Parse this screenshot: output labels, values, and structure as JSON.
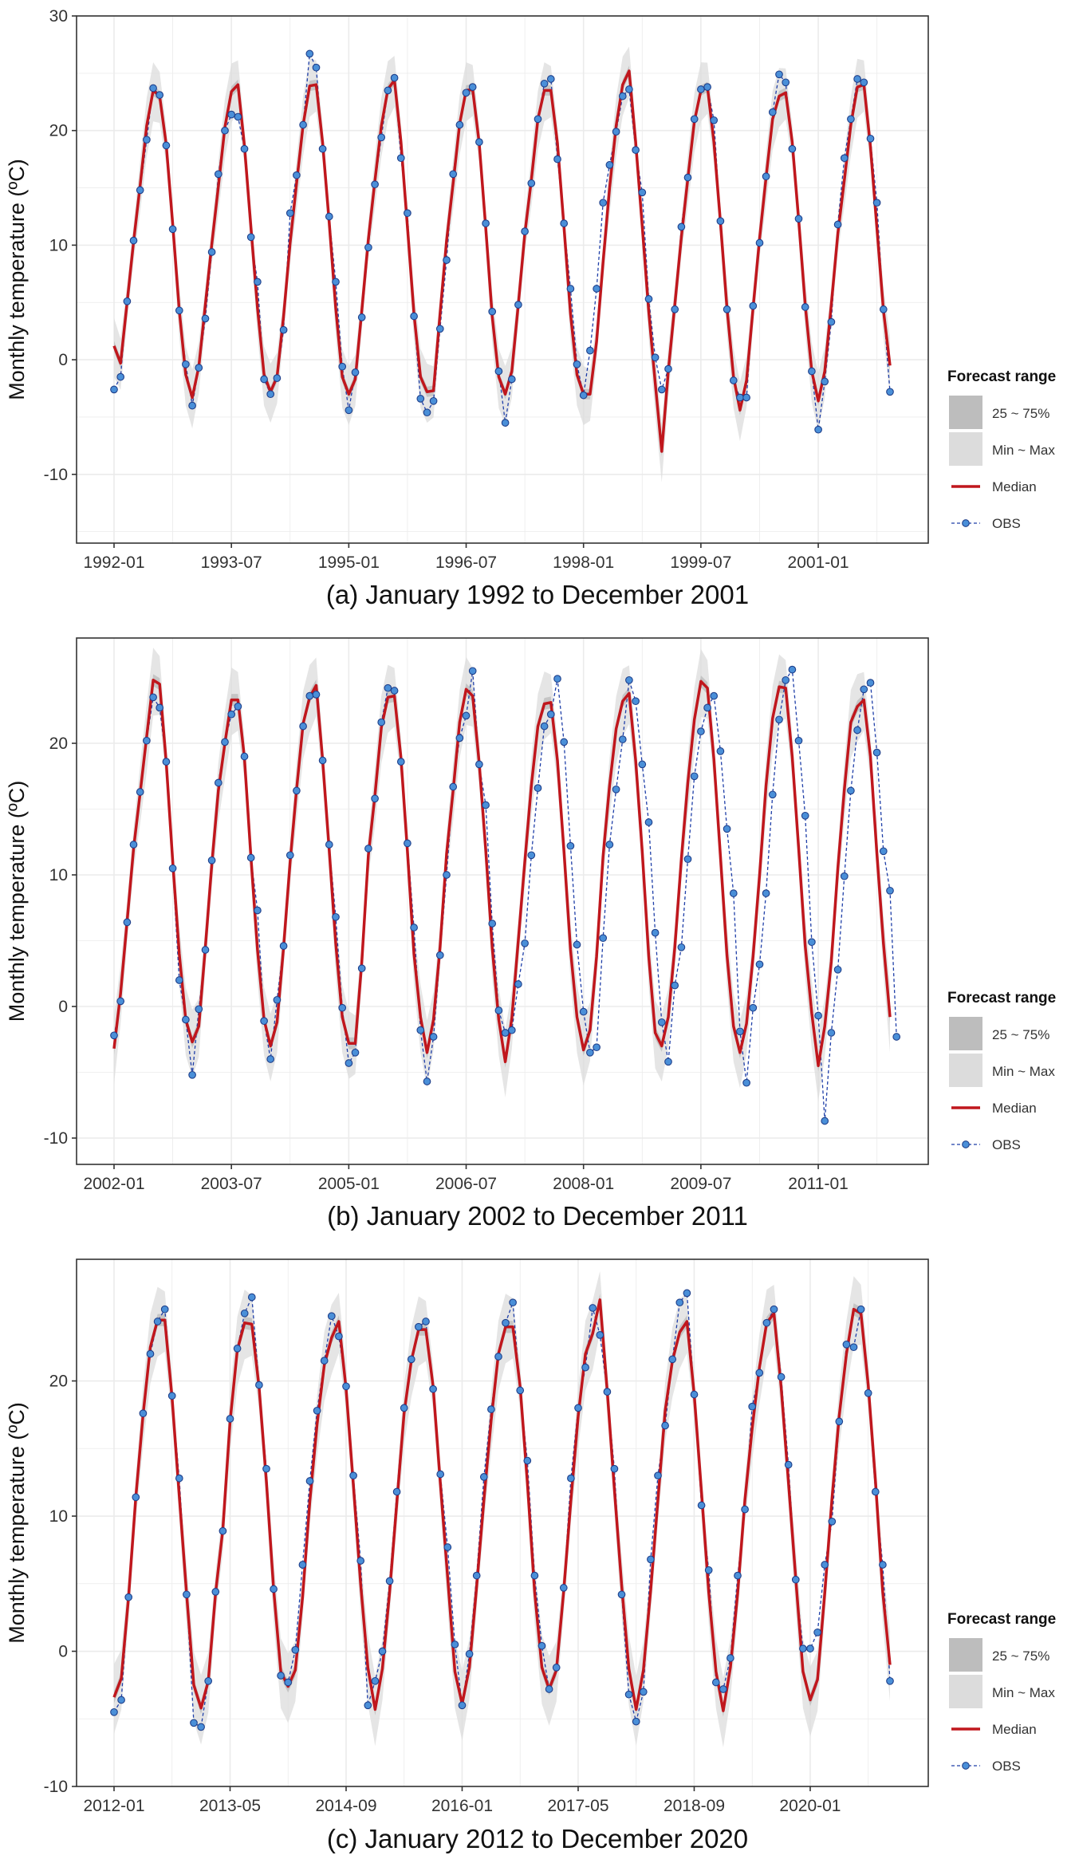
{
  "colors": {
    "panel_border": "#333333",
    "grid": "#ebebeb",
    "band_minmax": "#dcdcdc",
    "band_iqr": "#bdbdbd",
    "median": "#c0171d",
    "obs_line": "#1f3fa8",
    "obs_point": "#4a8fd8",
    "obs_point_edge": "#1f3f8a",
    "text": "#333333"
  },
  "legend": {
    "title": "Forecast range",
    "iqr_label": "25 ~ 75%",
    "minmax_label": "Min ~ Max",
    "median_label": "Median",
    "obs_label": "OBS"
  },
  "chart_data": [
    {
      "type": "line",
      "caption": "(a) January 1992 to December 2001",
      "ylabel": "Monthly temperature (ºC)",
      "ylim": [
        -16,
        30
      ],
      "yticks": [
        -10,
        0,
        10,
        20,
        30
      ],
      "x_start": "1992-01",
      "xticks": [
        {
          "label": "1992-01",
          "index": 0
        },
        {
          "label": "1993-07",
          "index": 18
        },
        {
          "label": "1995-01",
          "index": 36
        },
        {
          "label": "1996-07",
          "index": 54
        },
        {
          "label": "1998-01",
          "index": 72
        },
        {
          "label": "1999-07",
          "index": 90
        },
        {
          "label": "2001-01",
          "index": 108
        }
      ],
      "series": [
        {
          "name": "Median",
          "values": [
            1.2,
            -0.3,
            5.0,
            10.3,
            15.2,
            20.4,
            23.5,
            23.0,
            18.8,
            11.8,
            4.3,
            -1.3,
            -3.3,
            -0.6,
            4.8,
            10.1,
            15.1,
            20.3,
            23.4,
            24.0,
            18.7,
            11.5,
            4.5,
            -1.3,
            -2.8,
            -1.5,
            3.8,
            10.2,
            15.4,
            20.5,
            23.9,
            24.0,
            18.9,
            12.0,
            4.5,
            -1.5,
            -3.0,
            -1.7,
            4.3,
            10.5,
            15.6,
            20.4,
            23.6,
            24.4,
            19.0,
            11.6,
            4.0,
            -1.5,
            -2.8,
            -2.7,
            4.0,
            10.4,
            15.4,
            20.6,
            23.5,
            23.6,
            18.9,
            11.5,
            3.8,
            -1.5,
            -3.0,
            -1.0,
            4.8,
            11.0,
            15.7,
            21.0,
            23.5,
            23.5,
            18.9,
            11.6,
            4.0,
            -1.3,
            -3.0,
            -3.0,
            1.6,
            8.5,
            15.0,
            20.4,
            24.0,
            25.2,
            19.0,
            11.7,
            4.2,
            -2.0,
            -8.0,
            -1.0,
            4.8,
            10.7,
            15.8,
            20.8,
            23.5,
            23.8,
            19.0,
            12.0,
            4.5,
            -1.5,
            -4.4,
            -1.8,
            4.5,
            10.6,
            15.9,
            21.0,
            23.0,
            23.3,
            19.0,
            12.2,
            4.8,
            -1.0,
            -3.6,
            -1.0,
            4.8,
            11.0,
            15.7,
            20.5,
            23.8,
            24.0,
            18.6,
            11.5,
            4.3,
            -0.5
          ]
        },
        {
          "name": "OBS",
          "values": [
            -2.6,
            -1.5,
            5.1,
            10.4,
            14.8,
            19.2,
            23.7,
            23.1,
            18.7,
            11.4,
            4.3,
            -0.4,
            -4.0,
            -0.7,
            3.6,
            9.4,
            16.2,
            20.0,
            21.4,
            21.2,
            18.4,
            10.7,
            6.8,
            -1.7,
            -3.0,
            -1.6,
            2.6,
            12.8,
            16.1,
            20.5,
            26.7,
            25.5,
            18.4,
            12.5,
            6.8,
            -0.6,
            -4.4,
            -1.1,
            3.7,
            9.8,
            15.3,
            19.4,
            23.5,
            24.6,
            17.6,
            12.8,
            3.8,
            -3.4,
            -4.6,
            -3.6,
            2.7,
            8.7,
            16.2,
            20.5,
            23.3,
            23.8,
            19.0,
            11.9,
            4.2,
            -1.0,
            -5.5,
            -1.7,
            4.8,
            11.2,
            15.4,
            21.0,
            24.1,
            24.5,
            17.5,
            11.9,
            6.2,
            -0.4,
            -3.1,
            0.8,
            6.2,
            13.7,
            17.0,
            19.9,
            23.0,
            23.6,
            18.3,
            14.6,
            5.3,
            0.2,
            -2.6,
            -0.8,
            4.4,
            11.6,
            15.9,
            21.0,
            23.6,
            23.8,
            20.9,
            12.1,
            4.4,
            -1.8,
            -3.3,
            -3.3,
            4.7,
            10.2,
            16.0,
            21.6,
            24.9,
            24.2,
            18.4,
            12.3,
            4.6,
            -1.0,
            -6.1,
            -1.9,
            3.3,
            11.8,
            17.6,
            21.0,
            24.5,
            24.2,
            19.3,
            13.7,
            4.4,
            -2.8
          ]
        }
      ]
    },
    {
      "type": "line",
      "caption": "(b) January 2002 to December 2011",
      "ylabel": "Monthly temperature (ºC)",
      "ylim": [
        -12,
        28
      ],
      "yticks": [
        -10,
        0,
        10,
        20
      ],
      "x_start": "2002-01",
      "xticks": [
        {
          "label": "2002-01",
          "index": 0
        },
        {
          "label": "2003-07",
          "index": 18
        },
        {
          "label": "2005-01",
          "index": 36
        },
        {
          "label": "2006-07",
          "index": 54
        },
        {
          "label": "2008-01",
          "index": 72
        },
        {
          "label": "2009-07",
          "index": 90
        },
        {
          "label": "2011-01",
          "index": 108
        }
      ],
      "series": [
        {
          "name": "Median",
          "values": [
            -3.2,
            1.0,
            6.5,
            12.0,
            16.2,
            20.5,
            24.8,
            24.5,
            18.6,
            11.0,
            4.0,
            -1.0,
            -2.7,
            -1.5,
            4.5,
            10.8,
            16.4,
            20.0,
            23.3,
            23.3,
            18.9,
            11.3,
            4.3,
            -1.0,
            -3.0,
            -1.2,
            4.5,
            11.0,
            16.5,
            21.5,
            23.5,
            24.4,
            18.7,
            11.9,
            4.8,
            -0.8,
            -2.8,
            -2.8,
            3.4,
            11.5,
            16.0,
            21.2,
            23.5,
            23.6,
            18.9,
            11.8,
            4.0,
            -0.8,
            -3.5,
            -1.0,
            4.5,
            11.6,
            16.4,
            21.6,
            24.1,
            23.6,
            18.5,
            11.9,
            4.5,
            -1.0,
            -4.2,
            -0.9,
            5.0,
            11.0,
            16.8,
            21.3,
            23.0,
            23.1,
            18.7,
            11.8,
            4.3,
            -0.8,
            -3.3,
            -1.8,
            3.8,
            11.4,
            16.8,
            21.1,
            23.2,
            23.8,
            18.7,
            11.8,
            3.8,
            -2.0,
            -3.0,
            -0.8,
            4.5,
            11.2,
            17.0,
            21.8,
            24.7,
            24.2,
            18.8,
            11.4,
            3.9,
            -1.5,
            -3.5,
            -1.3,
            3.8,
            10.0,
            16.8,
            21.9,
            24.3,
            24.2,
            19.0,
            12.0,
            4.6,
            -0.5,
            -4.5,
            -1.5,
            3.4,
            10.5,
            16.5,
            21.6,
            22.8,
            23.3,
            19.0,
            11.6,
            4.8,
            -0.8
          ]
        },
        {
          "name": "OBS",
          "values": [
            -2.2,
            0.4,
            6.4,
            12.3,
            16.3,
            20.2,
            23.5,
            22.7,
            18.6,
            10.5,
            2.0,
            -1.0,
            -5.2,
            -0.2,
            4.3,
            11.1,
            17.0,
            20.1,
            22.2,
            22.8,
            19.0,
            11.3,
            7.3,
            -1.1,
            -4.0,
            0.5,
            4.6,
            11.5,
            16.4,
            21.3,
            23.6,
            23.7,
            18.7,
            12.3,
            6.8,
            -0.1,
            -4.3,
            -3.5,
            2.9,
            12.0,
            15.8,
            21.6,
            24.2,
            24.0,
            18.6,
            12.4,
            6.0,
            -1.8,
            -5.7,
            -2.3,
            3.9,
            10.0,
            16.7,
            20.4,
            22.1,
            25.5,
            18.4,
            15.3,
            6.3,
            -0.3,
            -2.0,
            -1.8,
            1.7,
            4.8,
            11.5,
            16.6,
            21.3,
            22.2,
            24.9,
            20.1,
            12.2,
            4.7,
            -0.4,
            -3.5,
            -3.1,
            5.2,
            12.3,
            16.5,
            20.3,
            24.8,
            23.2,
            18.4,
            14.0,
            5.6,
            -1.2,
            -4.2,
            1.6,
            4.5,
            11.2,
            17.5,
            20.9,
            22.7,
            23.6,
            19.4,
            13.5,
            8.6,
            -1.9,
            -5.8,
            -0.1,
            3.2,
            8.6,
            16.1,
            21.8,
            24.8,
            25.6,
            20.2,
            14.5,
            4.9,
            -0.7,
            -8.7,
            -2.0,
            2.8,
            9.9,
            16.4,
            21.0,
            24.1,
            24.6,
            19.3,
            11.8,
            8.8,
            -2.3
          ]
        }
      ]
    },
    {
      "type": "line",
      "caption": "(c) January 2012 to December 2020",
      "ylabel": "Monthly temperature (ºC)",
      "ylim": [
        -10,
        29
      ],
      "yticks": [
        -10,
        0,
        10,
        20
      ],
      "x_start": "2012-01",
      "xticks": [
        {
          "label": "2012-01",
          "index": 0
        },
        {
          "label": "2013-05",
          "index": 16
        },
        {
          "label": "2014-09",
          "index": 32
        },
        {
          "label": "2016-01",
          "index": 48
        },
        {
          "label": "2017-05",
          "index": 64
        },
        {
          "label": "2018-09",
          "index": 80
        },
        {
          "label": "2020-01",
          "index": 96
        }
      ],
      "series": [
        {
          "name": "Median",
          "values": [
            -3.4,
            -2.0,
            4.0,
            11.4,
            17.5,
            22.5,
            24.5,
            24.5,
            18.8,
            11.5,
            4.3,
            -2.5,
            -4.2,
            -2.2,
            4.3,
            9.0,
            17.0,
            22.3,
            24.3,
            24.2,
            19.5,
            12.6,
            4.6,
            -1.5,
            -2.6,
            -1.4,
            4.0,
            11.1,
            16.8,
            21.2,
            23.2,
            24.4,
            19.4,
            12.3,
            5.0,
            -1.2,
            -4.3,
            -1.3,
            4.4,
            11.0,
            17.6,
            21.5,
            23.8,
            23.8,
            19.6,
            12.4,
            5.5,
            -1.5,
            -3.9,
            -1.2,
            4.8,
            11.2,
            17.1,
            22.0,
            24.0,
            24.0,
            19.6,
            12.5,
            4.4,
            -1.2,
            -2.8,
            -1.4,
            4.4,
            11.2,
            17.4,
            22.0,
            23.5,
            26.0,
            19.3,
            12.0,
            4.9,
            -1.3,
            -4.3,
            -1.4,
            4.5,
            11.2,
            17.8,
            21.5,
            23.6,
            24.4,
            19.0,
            11.8,
            4.4,
            -1.5,
            -4.4,
            -1.2,
            4.3,
            11.2,
            16.5,
            21.0,
            24.3,
            25.0,
            19.5,
            12.5,
            5.4,
            -1.5,
            -3.6,
            -2.1,
            4.3,
            11.3,
            17.4,
            22.0,
            25.3,
            25.0,
            19.7,
            12.6,
            4.4,
            -1.0
          ]
        },
        {
          "name": "OBS",
          "values": [
            -4.5,
            -3.6,
            4.0,
            11.4,
            17.6,
            22.0,
            24.4,
            25.3,
            18.9,
            12.8,
            4.2,
            -5.3,
            -5.6,
            -2.2,
            4.4,
            8.9,
            17.2,
            22.4,
            25.0,
            26.2,
            19.7,
            13.5,
            4.6,
            -1.8,
            -2.3,
            0.1,
            6.4,
            12.6,
            17.8,
            21.5,
            24.8,
            23.3,
            19.6,
            13.0,
            6.7,
            -4.0,
            -2.2,
            0.0,
            5.2,
            11.8,
            18.0,
            21.6,
            24.0,
            24.4,
            19.4,
            13.1,
            7.7,
            0.5,
            -4.0,
            -0.2,
            5.6,
            12.9,
            17.9,
            21.8,
            24.3,
            25.8,
            19.3,
            14.1,
            5.6,
            0.4,
            -2.8,
            -1.2,
            4.7,
            12.8,
            18.0,
            21.0,
            25.4,
            23.4,
            19.2,
            13.5,
            4.2,
            -3.2,
            -5.2,
            -3.0,
            6.8,
            13.0,
            16.7,
            21.6,
            25.8,
            26.5,
            19.0,
            10.8,
            6.0,
            -2.3,
            -2.8,
            -0.5,
            5.6,
            10.5,
            18.1,
            20.6,
            24.3,
            25.3,
            20.3,
            13.8,
            5.3,
            0.2,
            0.2,
            1.4,
            6.4,
            9.6,
            17.0,
            22.7,
            22.5,
            25.3,
            19.1,
            11.8,
            6.4,
            -2.2
          ]
        }
      ]
    }
  ]
}
